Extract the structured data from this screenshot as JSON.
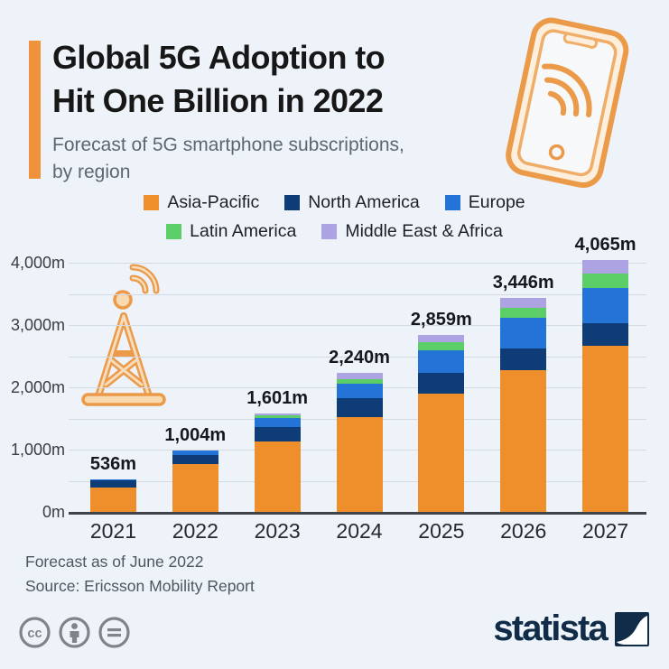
{
  "header": {
    "title_line1": "Global 5G Adoption to",
    "title_line2": "Hit One Billion in 2022",
    "subtitle_line1": "Forecast of 5G smartphone subscriptions,",
    "subtitle_line2": "by region"
  },
  "colors": {
    "background": "#eef3f9",
    "accent": "#f0923a",
    "asia_pacific": "#ef8f2b",
    "north_america": "#0e3c76",
    "europe": "#2374d6",
    "latin_america": "#5bce68",
    "middle_east_africa": "#ada2e2",
    "gridline": "#d4dae1",
    "baseline": "#3f444a",
    "statista_navy": "#102c49",
    "cc_gray": "#7f8488",
    "icon_orange": "#e9913d"
  },
  "chart_data": {
    "type": "bar",
    "stacked": true,
    "title": "Forecast of 5G smartphone subscriptions, by region",
    "unit": "million subscriptions",
    "categories": [
      "2021",
      "2022",
      "2023",
      "2024",
      "2025",
      "2026",
      "2027"
    ],
    "series": [
      {
        "name": "Asia-Pacific",
        "color_key": "asia_pacific",
        "values": [
          405,
          780,
          1145,
          1540,
          1920,
          2290,
          2680
        ]
      },
      {
        "name": "North America",
        "color_key": "north_america",
        "values": [
          110,
          145,
          225,
          305,
          330,
          345,
          360
        ]
      },
      {
        "name": "Europe",
        "color_key": "europe",
        "values": [
          15,
          70,
          145,
          225,
          360,
          490,
          565
        ]
      },
      {
        "name": "Latin America",
        "color_key": "latin_america",
        "values": [
          3,
          4,
          47,
          72,
          125,
          165,
          230
        ]
      },
      {
        "name": "Middle East & Africa",
        "color_key": "middle_east_africa",
        "values": [
          3,
          5,
          39,
          98,
          124,
          156,
          230
        ]
      }
    ],
    "totals": [
      536,
      1004,
      1601,
      2240,
      2859,
      3446,
      4065
    ],
    "totals_labels": [
      "536m",
      "1,004m",
      "1,601m",
      "2,240m",
      "2,859m",
      "3,446m",
      "4,065m"
    ],
    "y_ticks": [
      {
        "value": 0,
        "label": "0m"
      },
      {
        "value": 1000,
        "label": "1,000m"
      },
      {
        "value": 2000,
        "label": "2,000m"
      },
      {
        "value": 3000,
        "label": "3,000m"
      },
      {
        "value": 4000,
        "label": "4,000m"
      }
    ],
    "ylim": [
      0,
      4000
    ],
    "gridline_step": 500,
    "grid": true,
    "legend_position": "top",
    "legend_rows": [
      [
        0,
        1,
        2
      ],
      [
        3,
        4
      ]
    ]
  },
  "footer": {
    "note": "Forecast as of June 2022",
    "source": "Source: Ericsson Mobility Report"
  },
  "branding": {
    "logo_text": "statista"
  },
  "icons": [
    "smartphone-5g-icon",
    "radio-tower-icon",
    "cc-icon",
    "cc-attribution-icon",
    "cc-nd-icon",
    "statista-logo-mark"
  ]
}
